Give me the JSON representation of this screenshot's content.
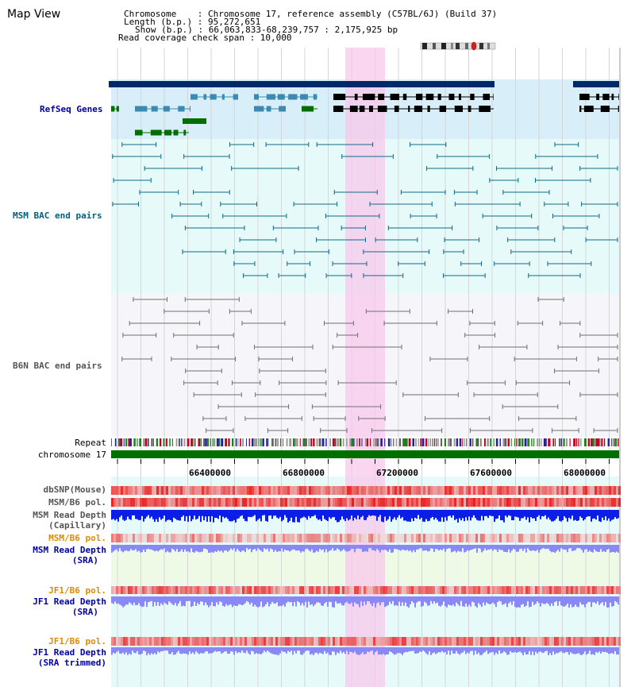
{
  "view": {
    "title": "Map View"
  },
  "info": {
    "chromosome_line": "Chromosome    : Chromosome 17, reference assembly (C57BL/6J) (Build 37)",
    "length_line": "Length (b.p.) : 95,272,651",
    "show_line": "Show (b.p.) : 66,063,833-68,239,757 : 2,175,925 bp",
    "coverage_line": "Read coverage check span : 10,000"
  },
  "tracks": {
    "refseq": "RefSeq Genes",
    "msm_bac": "MSM BAC end pairs",
    "b6n_bac": "B6N BAC end pairs",
    "repeat": "Repeat",
    "chromosome": "chromosome 17",
    "dbsnp": "dbSNP(Mouse)",
    "msm_b6_pol_1": "MSM/B6 pol.",
    "msm_depth_cap_1": "MSM Read Depth",
    "msm_depth_cap_2": "(Capillary)",
    "msm_b6_pol_2": "MSM/B6 pol.",
    "msm_depth_sra_1": "MSM Read Depth",
    "msm_depth_sra_2": "(SRA)",
    "jf1_b6_pol_1": "JF1/B6 pol.",
    "jf1_depth_sra_1": "JF1 Read Depth",
    "jf1_depth_sra_2": "(SRA)",
    "jf1_b6_pol_2": "JF1/B6 pol.",
    "jf1_depth_trim_1": "JF1 Read Depth",
    "jf1_depth_trim_2": "(SRA trimmed)"
  },
  "axis": {
    "ticks": [
      "66400000",
      "66800000",
      "67200000",
      "67600000",
      "68000000"
    ]
  },
  "colors": {
    "refseq_bg": "#d8eef8",
    "msm_bg": "#e6fafa",
    "b6n_bg": "#f5f5fa",
    "highlight": "#f8c8ec",
    "chrom_green": "#007000",
    "gene_navy": "#002a66",
    "gene_blue": "#3b8ab2",
    "gene_green": "#006e00",
    "msm_line": "#0e6a86",
    "b6n_line": "#707070",
    "depth_blue": "#0a1ee6",
    "depth_light": "#8a88f4",
    "label_blue": "#0000a0",
    "label_teal": "#006080",
    "label_gray": "#555555",
    "label_orange": "#e08a00"
  }
}
